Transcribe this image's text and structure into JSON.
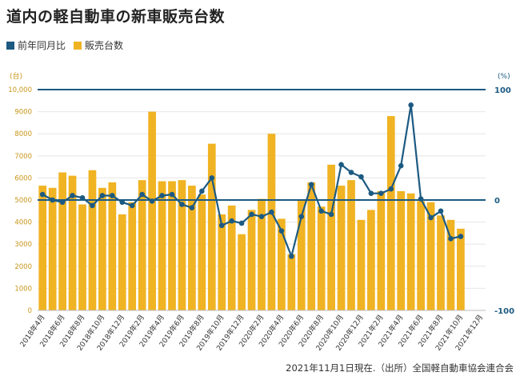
{
  "chart_data": {
    "type": "bar+line",
    "title": "道内の軽自動車の新車販売台数",
    "categories": [
      "2018年4月",
      "2018年5月",
      "2018年6月",
      "2018年7月",
      "2018年8月",
      "2018年9月",
      "2018年10月",
      "2018年11月",
      "2018年12月",
      "2019年1月",
      "2019年2月",
      "2019年3月",
      "2019年4月",
      "2019年5月",
      "2019年6月",
      "2019年7月",
      "2019年8月",
      "2019年9月",
      "2019年10月",
      "2019年11月",
      "2019年12月",
      "2020年1月",
      "2020年2月",
      "2020年3月",
      "2020年4月",
      "2020年5月",
      "2020年6月",
      "2020年7月",
      "2020年8月",
      "2020年9月",
      "2020年10月",
      "2020年11月",
      "2020年12月",
      "2021年1月",
      "2021年2月",
      "2021年3月",
      "2021年4月",
      "2021年5月",
      "2021年6月",
      "2021年7月",
      "2021年8月",
      "2021年9月",
      "2021年10月",
      "2021年11月",
      "2021年12月"
    ],
    "x_tick_labels": [
      "2018年4月",
      "2018年6月",
      "2018年8月",
      "2018年10月",
      "2018年12月",
      "2019年2月",
      "2019年4月",
      "2019年6月",
      "2019年8月",
      "2019年10月",
      "2019年12月",
      "2020年2月",
      "2020年4月",
      "2020年6月",
      "2020年8月",
      "2020年10月",
      "2020年12月",
      "2021年2月",
      "2021年4月",
      "2021年6月",
      "2021年8月",
      "2021年10月",
      "2021年12月"
    ],
    "series": [
      {
        "name": "販売台数",
        "type": "bar",
        "axis": "left",
        "color": "#f0b323",
        "values": [
          5650,
          5550,
          6250,
          6100,
          4800,
          6350,
          5550,
          5800,
          4350,
          4900,
          5900,
          9000,
          5850,
          5850,
          5900,
          5650,
          5250,
          7550,
          4350,
          4750,
          3450,
          4550,
          5050,
          8000,
          4150,
          2550,
          5000,
          5800,
          4700,
          6600,
          5650,
          5900,
          4100,
          4550,
          5400,
          8800,
          5400,
          5300,
          4950,
          4900,
          4300,
          4100,
          3700,
          null,
          null
        ]
      },
      {
        "name": "前年同月比",
        "type": "line",
        "axis": "right",
        "color": "#1c5a82",
        "values": [
          5,
          0,
          -2,
          4,
          2,
          -5,
          4,
          4,
          -2,
          -5,
          5,
          -1,
          4,
          5,
          -4,
          -7,
          8,
          20,
          -23,
          -19,
          -21,
          -13,
          -15,
          -11,
          -28,
          -51,
          -15,
          14,
          -10,
          -13,
          32,
          25,
          21,
          6,
          6,
          10,
          31,
          86,
          1,
          -16,
          -10,
          -35,
          -33,
          null,
          null
        ]
      }
    ],
    "y_left": {
      "label": "(台)",
      "ylim": [
        0,
        10000
      ],
      "ticks": [
        "0",
        "1000",
        "2000",
        "3000",
        "4000",
        "5000",
        "6000",
        "7000",
        "8000",
        "9000",
        "10,000"
      ]
    },
    "y_right": {
      "label": "(%)",
      "ylim": [
        -100,
        100
      ],
      "ticks": [
        "100",
        "0",
        "-100"
      ],
      "reference_lines": [
        100,
        0
      ]
    }
  },
  "legend": {
    "line_label": "前年同月比",
    "bar_label": "販売台数"
  },
  "source_note": "2021年11月1日現在.（出所）全国軽自動車協会連合会"
}
